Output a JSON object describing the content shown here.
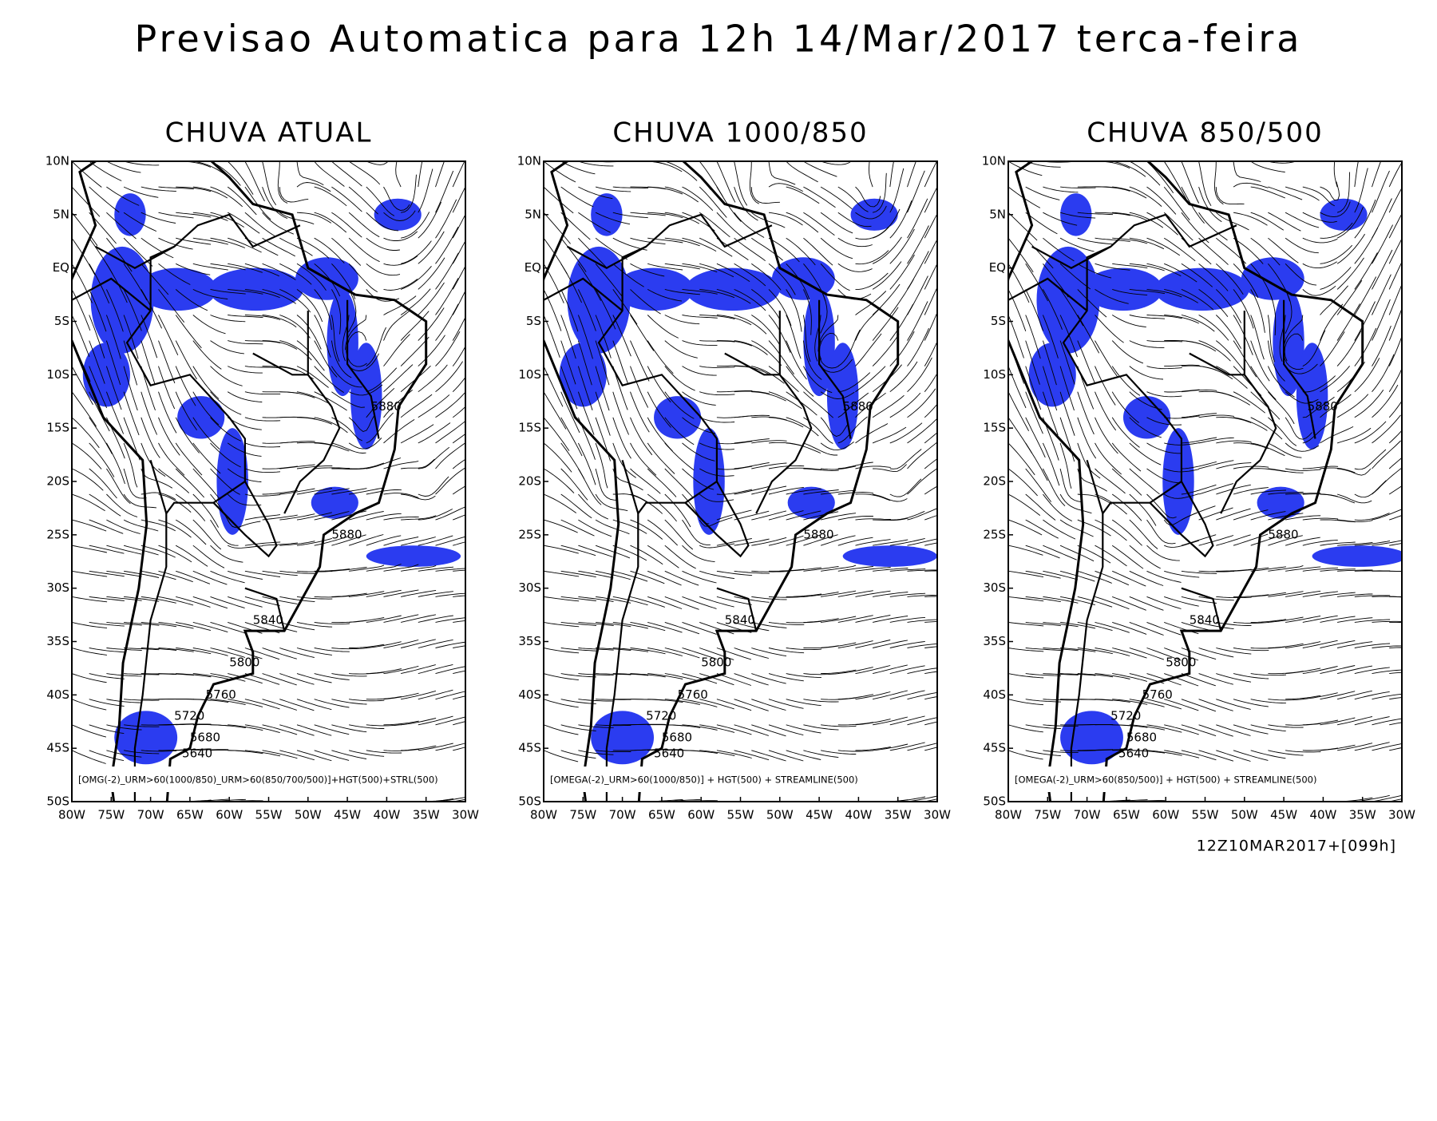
{
  "title": "Previsao Automatica para 12h 14/Mar/2017 terca-feira",
  "axes": {
    "lat": [
      "10N",
      "5N",
      "EQ",
      "5S",
      "10S",
      "15S",
      "20S",
      "25S",
      "30S",
      "35S",
      "40S",
      "45S",
      "50S"
    ],
    "lon": [
      "80W",
      "75W",
      "70W",
      "65W",
      "60W",
      "55W",
      "50W",
      "45W",
      "40W",
      "35W",
      "30W"
    ]
  },
  "panels": [
    {
      "title": "CHUVA ATUAL",
      "caption": "[OMG(-2)_URM>60(1000/850)_URM>60(850/700/500)]+HGT(500)+STRL(500)",
      "contours": [
        "5880",
        "5880",
        "5840",
        "5800",
        "5760",
        "5720",
        "5680",
        "5640"
      ]
    },
    {
      "title": "CHUVA 1000/850",
      "caption": "[OMEGA(-2)_URM>60(1000/850)] + HGT(500) + STREAMLINE(500)",
      "contours": [
        "5880",
        "5880",
        "5840",
        "5800",
        "5760",
        "5720",
        "5680",
        "5640"
      ]
    },
    {
      "title": "CHUVA 850/500",
      "caption": "[OMEGA(-2)_URM>60(850/500)] + HGT(500) + STREAMLINE(500)",
      "contours": [
        "5880",
        "5880",
        "5840",
        "5800",
        "5760",
        "5720",
        "5680",
        "5640"
      ]
    }
  ],
  "footer": "12Z10MAR2017+[099h]"
}
